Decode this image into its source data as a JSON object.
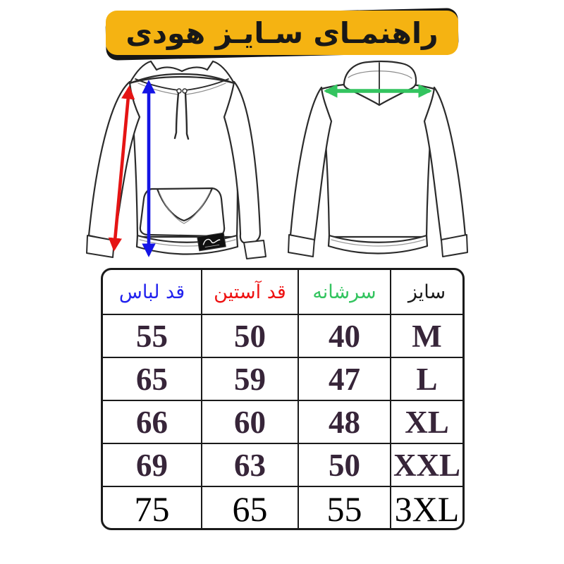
{
  "banner": {
    "title": "راهنمـای سـایـز هودی",
    "bg_color": "#F5B312",
    "shadow_color": "#161616",
    "text_color": "#181818"
  },
  "diagram": {
    "front_view": {
      "name": "hoodie-front-view",
      "arrows": [
        {
          "id": "sleeve-length-arrow",
          "color": "#E51414",
          "measures": "قد آستین"
        },
        {
          "id": "garment-length-arrow",
          "color": "#1414E5",
          "measures": "قد لباس"
        }
      ]
    },
    "back_view": {
      "name": "hoodie-back-view",
      "arrows": [
        {
          "id": "shoulder-width-arrow",
          "color": "#33C45F",
          "measures": "سرشانه"
        }
      ]
    }
  },
  "table": {
    "columns": [
      {
        "key": "size",
        "label": "سایز",
        "color": "#1A1A1A"
      },
      {
        "key": "shoulder",
        "label": "سرشانه",
        "color": "#33C45F"
      },
      {
        "key": "sleeve",
        "label": "قد آستین",
        "color": "#EE1111"
      },
      {
        "key": "length",
        "label": "قد لباس",
        "color": "#2222EE"
      }
    ],
    "rows": [
      {
        "size": "M",
        "shoulder": "40",
        "sleeve": "50",
        "length": "55"
      },
      {
        "size": "L",
        "shoulder": "47",
        "sleeve": "59",
        "length": "65"
      },
      {
        "size": "XL",
        "shoulder": "48",
        "sleeve": "60",
        "length": "66"
      },
      {
        "size": "XXL",
        "shoulder": "50",
        "sleeve": "63",
        "length": "69"
      },
      {
        "size": "3XL",
        "shoulder": "55",
        "sleeve": "65",
        "length": "75"
      }
    ]
  }
}
